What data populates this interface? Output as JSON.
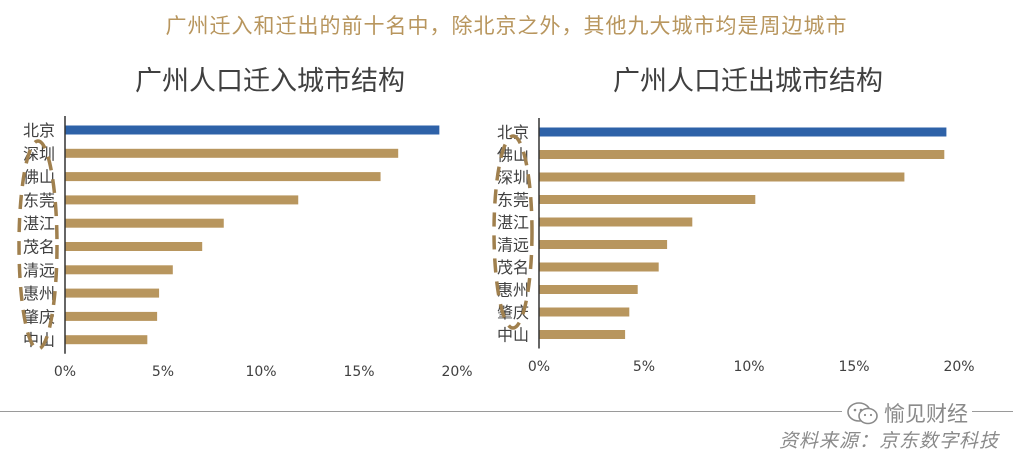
{
  "headline": "广州迁入和迁出的前十名中，除北京之外，其他九大城市均是周边城市",
  "brand": {
    "name": "愉见财经",
    "icon": "wechat-icon"
  },
  "source_note": "资料来源：京东数字科技",
  "colors": {
    "highlight": "#2E62A8",
    "bar": "#B8965E",
    "annotation": "#A0804E",
    "axis": "#333333",
    "text": "#404040"
  },
  "chart_data": [
    {
      "type": "bar",
      "orientation": "horizontal",
      "title": "广州人口迁入城市结构",
      "categories": [
        "北京",
        "深圳",
        "佛山",
        "东莞",
        "湛江",
        "茂名",
        "清远",
        "惠州",
        "肇庆",
        "中山"
      ],
      "values": [
        19.1,
        17.0,
        16.1,
        11.9,
        8.1,
        7.0,
        5.5,
        4.8,
        4.7,
        4.2
      ],
      "highlight": "北京",
      "xlim": [
        0,
        20
      ],
      "xticks": [
        "0%",
        "5%",
        "10%",
        "15%",
        "20%"
      ],
      "annotation": "dashed ellipse around the nine neighboring cities"
    },
    {
      "type": "bar",
      "orientation": "horizontal",
      "title": "广州人口迁出城市结构",
      "categories": [
        "北京",
        "佛山",
        "深圳",
        "东莞",
        "湛江",
        "清远",
        "茂名",
        "惠州",
        "肇庆",
        "中山"
      ],
      "values": [
        19.4,
        19.3,
        17.4,
        10.3,
        7.3,
        6.1,
        5.7,
        4.7,
        4.3,
        4.1
      ],
      "highlight": "北京",
      "xlim": [
        0,
        20
      ],
      "xticks": [
        "0%",
        "5%",
        "10%",
        "15%",
        "20%"
      ],
      "annotation": "dashed ellipse around the nine neighboring cities"
    }
  ]
}
